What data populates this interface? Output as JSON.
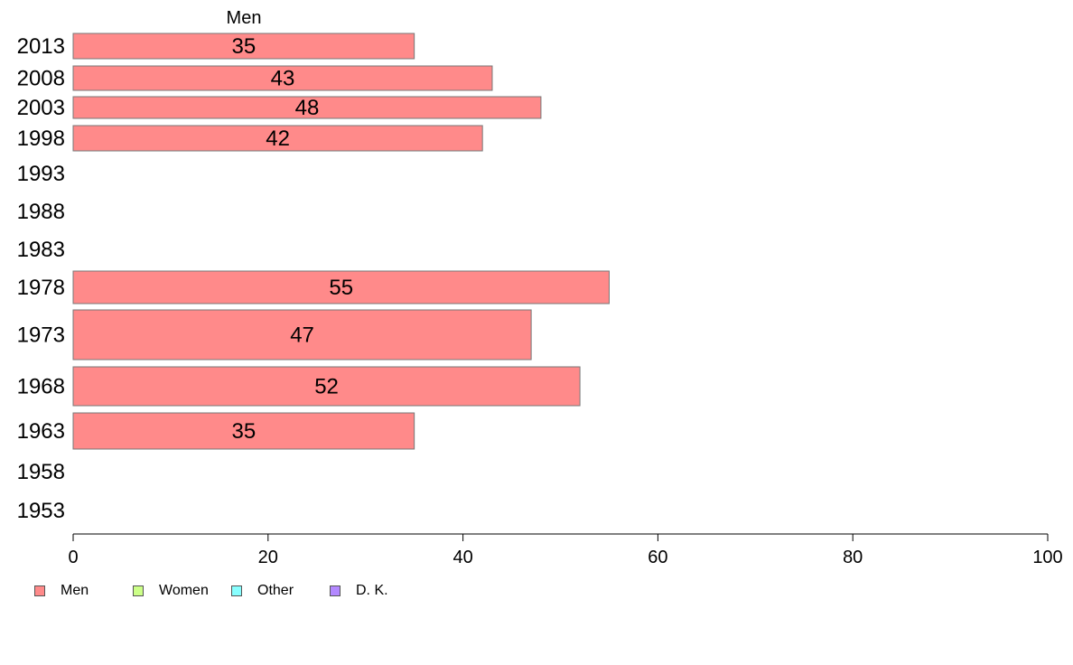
{
  "chart_data": {
    "type": "bar",
    "orientation": "horizontal",
    "series_title": "Men",
    "categories": [
      "2013",
      "2008",
      "2003",
      "1998",
      "1993",
      "1988",
      "1983",
      "1978",
      "1973",
      "1968",
      "1963",
      "1958",
      "1953"
    ],
    "series": [
      {
        "name": "Men",
        "color": "#ff8a8a",
        "values": [
          35,
          43,
          48,
          42,
          null,
          null,
          null,
          55,
          47,
          52,
          35,
          null,
          null
        ]
      }
    ],
    "xlim": [
      0,
      100
    ],
    "xticks": [
      0,
      20,
      40,
      60,
      80,
      100
    ],
    "grid": false,
    "legend_placement": "bottom-left"
  },
  "legend": [
    {
      "label": "Men",
      "color": "#ff8a8a"
    },
    {
      "label": "Women",
      "color": "#ccff88"
    },
    {
      "label": "Other",
      "color": "#88ffff"
    },
    {
      "label": "D. K.",
      "color": "#b388ff"
    }
  ]
}
